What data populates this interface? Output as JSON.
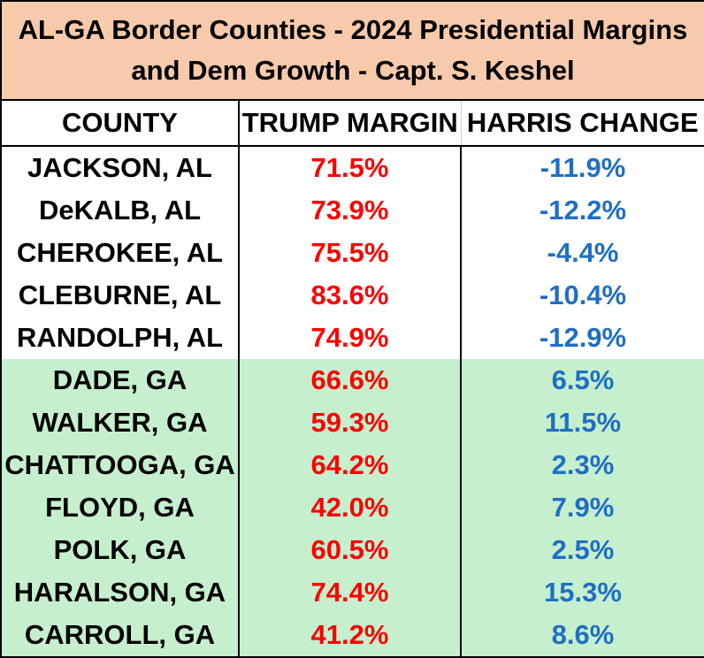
{
  "title": {
    "line1": "AL-GA Border Counties -  2024 Presidential Margins",
    "line2": "and Dem Growth - Capt. S. Keshel"
  },
  "headers": [
    "COUNTY",
    "TRUMP MARGIN",
    "HARRIS CHANGE"
  ],
  "colors": {
    "title_bg": "#f7caac",
    "ga_row_bg": "#c6efce",
    "trump_text": "#ff0000",
    "harris_text": "#1f6fc4"
  },
  "chart_data": {
    "type": "table",
    "title": "AL-GA Border Counties -  2024 Presidential Margins and Dem Growth - Capt. S. Keshel",
    "columns": [
      "COUNTY",
      "TRUMP MARGIN",
      "HARRIS CHANGE"
    ],
    "rows": [
      {
        "county": "JACKSON, AL",
        "trump_margin": "71.5%",
        "harris_change": "-11.9%",
        "state": "AL"
      },
      {
        "county": "DeKALB, AL",
        "trump_margin": "73.9%",
        "harris_change": "-12.2%",
        "state": "AL"
      },
      {
        "county": "CHEROKEE, AL",
        "trump_margin": "75.5%",
        "harris_change": "-4.4%",
        "state": "AL"
      },
      {
        "county": "CLEBURNE, AL",
        "trump_margin": "83.6%",
        "harris_change": "-10.4%",
        "state": "AL"
      },
      {
        "county": "RANDOLPH, AL",
        "trump_margin": "74.9%",
        "harris_change": "-12.9%",
        "state": "AL"
      },
      {
        "county": "DADE, GA",
        "trump_margin": "66.6%",
        "harris_change": "6.5%",
        "state": "GA"
      },
      {
        "county": "WALKER, GA",
        "trump_margin": "59.3%",
        "harris_change": "11.5%",
        "state": "GA"
      },
      {
        "county": "CHATTOOGA, GA",
        "trump_margin": "64.2%",
        "harris_change": "2.3%",
        "state": "GA"
      },
      {
        "county": "FLOYD, GA",
        "trump_margin": "42.0%",
        "harris_change": "7.9%",
        "state": "GA"
      },
      {
        "county": "POLK, GA",
        "trump_margin": "60.5%",
        "harris_change": "2.5%",
        "state": "GA"
      },
      {
        "county": "HARALSON, GA",
        "trump_margin": "74.4%",
        "harris_change": "15.3%",
        "state": "GA"
      },
      {
        "county": "CARROLL, GA",
        "trump_margin": "41.2%",
        "harris_change": "8.6%",
        "state": "GA"
      }
    ]
  }
}
